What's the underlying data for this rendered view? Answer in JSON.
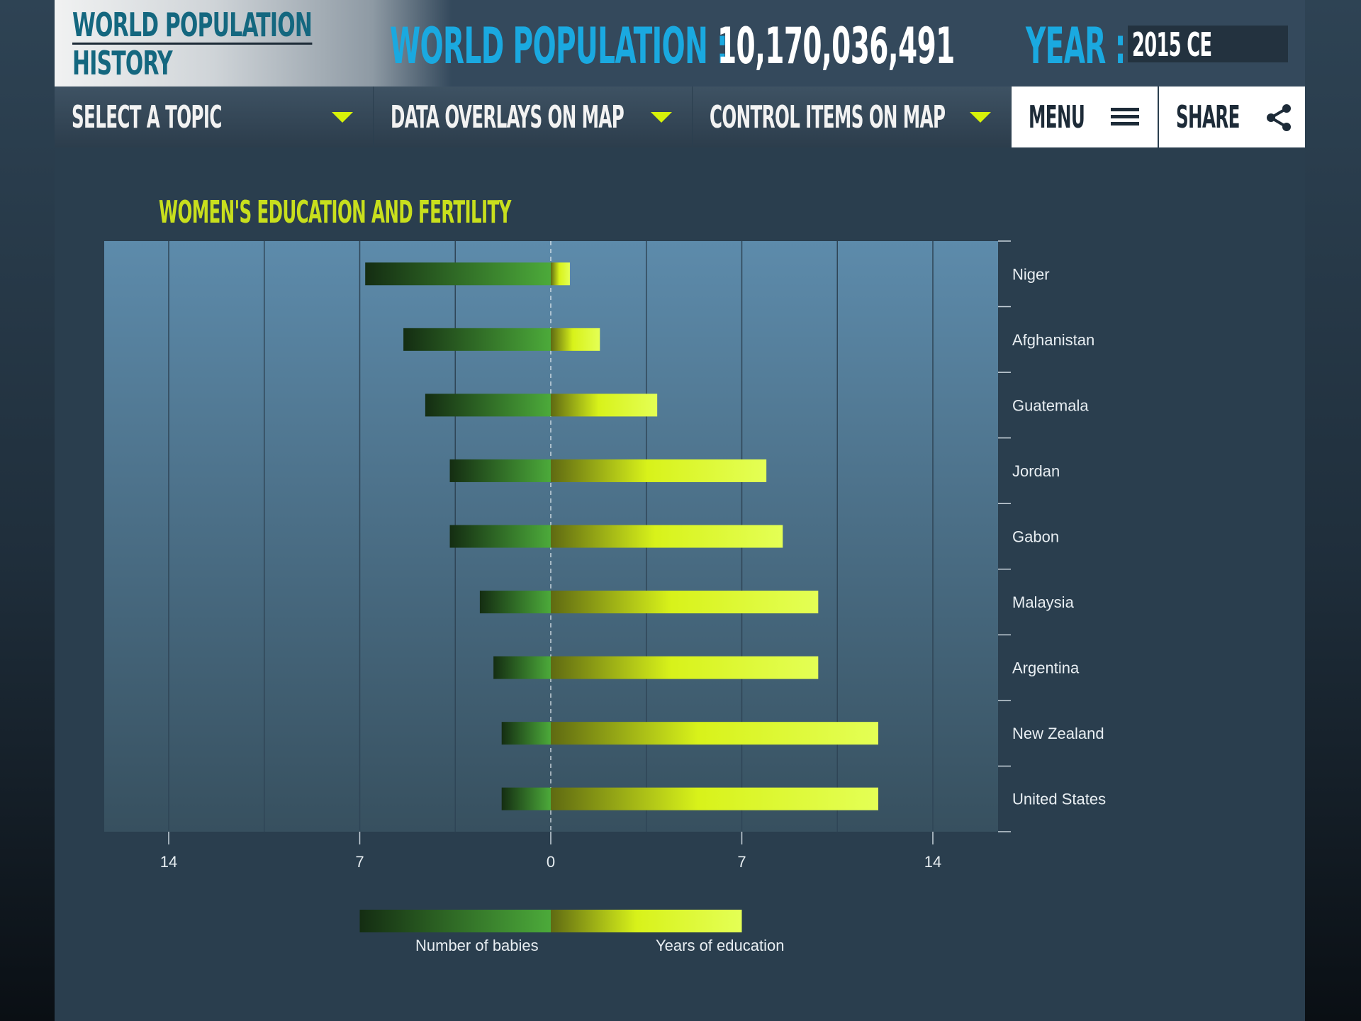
{
  "header": {
    "logo_line1": "World Population",
    "logo_line2": "History",
    "population_label": "World Population :",
    "population_value": "10,170,036,491",
    "year_label": "Year :",
    "year_value": "2015 CE"
  },
  "nav": {
    "topic": "Select a Topic",
    "overlays": "Data Overlays on Map",
    "controls": "Control Items  on  Map",
    "menu": "Menu",
    "share": "Share"
  },
  "colors": {
    "accent": "#1aa9e0",
    "highlight": "#d7f20a",
    "title": "#c8df1d",
    "babies_dark": "#142d12",
    "babies_light": "#4caa3a",
    "edu_dark": "#5f6a12",
    "edu_light": "#e4ff55"
  },
  "chart_data": {
    "type": "bar",
    "title": "Women's Education and Fertility",
    "categories": [
      "Niger",
      "Afghanistan",
      "Guatemala",
      "Jordan",
      "Gabon",
      "Malaysia",
      "Argentina",
      "New Zealand",
      "United States"
    ],
    "series": [
      {
        "name": "Number of babies",
        "values": [
          6.8,
          5.4,
          4.6,
          3.7,
          3.7,
          2.6,
          2.1,
          1.8,
          1.8
        ]
      },
      {
        "name": "Years of education",
        "values": [
          0.7,
          1.8,
          3.9,
          7.9,
          8.5,
          9.8,
          9.8,
          12.0,
          12.0
        ]
      }
    ],
    "x_ticks": [
      "14",
      "7",
      "0",
      "7",
      "14"
    ],
    "xlim": [
      -16.3,
      16.3
    ],
    "grid": true,
    "legend_position": "bottom"
  }
}
